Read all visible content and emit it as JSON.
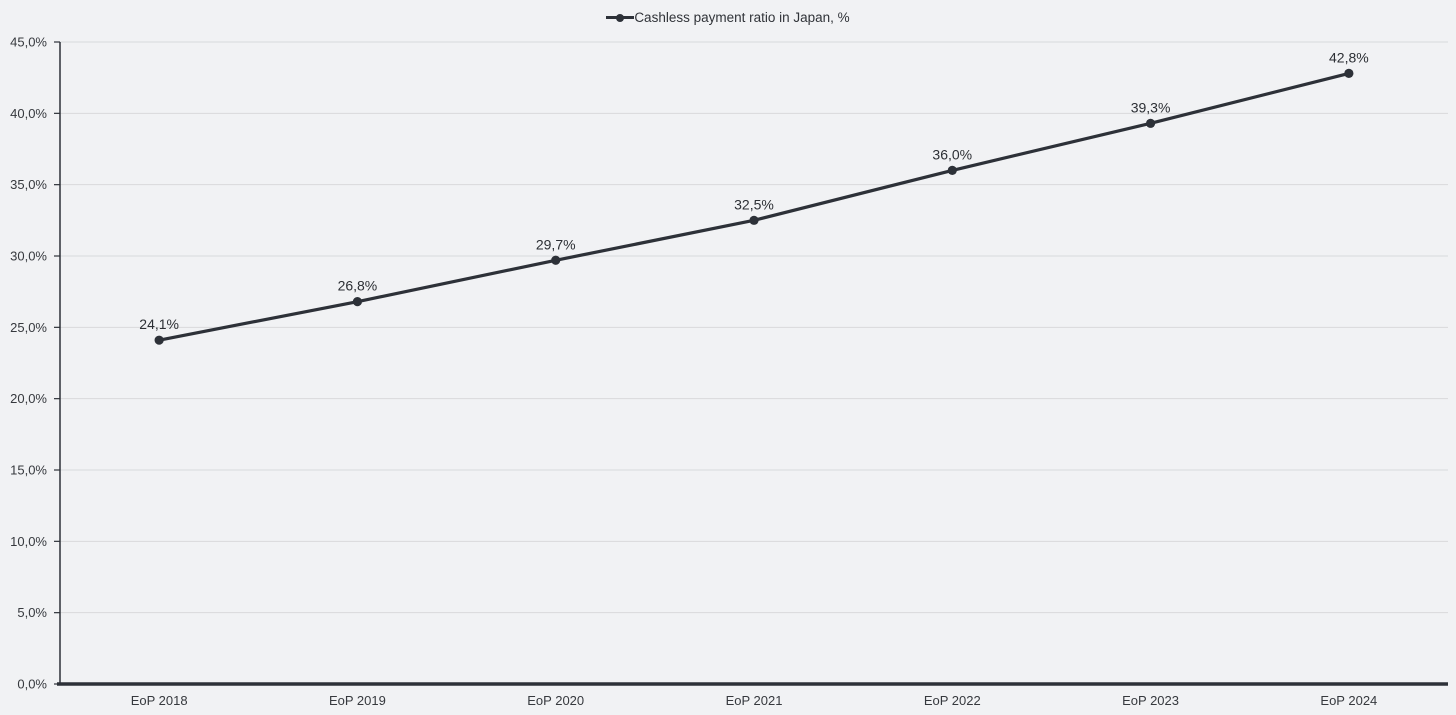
{
  "chart_data": {
    "type": "line",
    "title": "",
    "legend": "Cashless payment ratio in Japan, %",
    "legend_position": "top-center",
    "grid": true,
    "categories": [
      "EoP 2018",
      "EoP 2019",
      "EoP 2020",
      "EoP 2021",
      "EoP 2022",
      "EoP 2023",
      "EoP 2024"
    ],
    "series": [
      {
        "name": "Cashless payment ratio in Japan, %",
        "values": [
          24.1,
          26.8,
          29.7,
          32.5,
          36.0,
          39.3,
          42.8
        ],
        "value_labels": [
          "24,1%",
          "26,8%",
          "29,7%",
          "32,5%",
          "36,0%",
          "39,3%",
          "42,8%"
        ]
      }
    ],
    "xlabel": "",
    "ylabel": "",
    "ylim": [
      0,
      45
    ],
    "yticks": {
      "values": [
        0,
        5,
        10,
        15,
        20,
        25,
        30,
        35,
        40,
        45
      ],
      "labels": [
        "0,0%",
        "5,0%",
        "10,0%",
        "15,0%",
        "20,0%",
        "25,0%",
        "30,0%",
        "35,0%",
        "40,0%",
        "45,0%"
      ]
    },
    "colors": {
      "series": "#2d3138",
      "axis": "#2d3138",
      "grid": "#d8d9db",
      "background": "#f1f2f4",
      "text": "#36393e"
    }
  }
}
